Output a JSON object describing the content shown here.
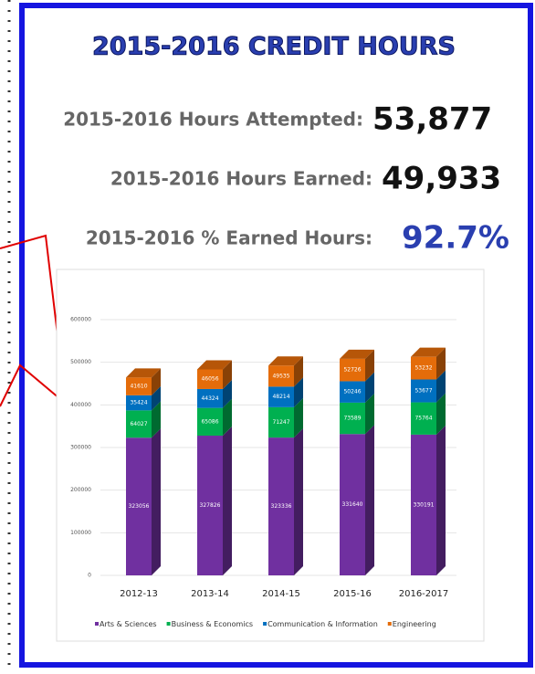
{
  "header": {
    "title": "2015-2016 CREDIT HOURS"
  },
  "stats": [
    {
      "label": "2015-2016 Hours Attempted:",
      "value": "53,877"
    },
    {
      "label": "2015-2016 Hours Earned:",
      "value": "49,933"
    },
    {
      "label": "2015-2016 % Earned Hours:",
      "value": "92.7%"
    }
  ],
  "chart_data": {
    "type": "stacked_bar",
    "categories": [
      "2012-13",
      "2013-14",
      "2014-15",
      "2015-16",
      "2016-2017"
    ],
    "series": [
      {
        "name": "Arts & Sciences",
        "color": "#7030a0",
        "values": [
          323056,
          327826,
          323336,
          331640,
          330191
        ]
      },
      {
        "name": "Business & Economics",
        "color": "#00b050",
        "values": [
          64027,
          65086,
          71247,
          73589,
          75764
        ]
      },
      {
        "name": "Communication & Information",
        "color": "#0070c0",
        "values": [
          35424,
          44324,
          48214,
          50246,
          53677
        ]
      },
      {
        "name": "Engineering",
        "color": "#e46c0a",
        "values": [
          41610,
          46056,
          49535,
          52726,
          53232
        ]
      }
    ],
    "ylim": [
      0,
      600000
    ],
    "yticks": [
      0,
      100000,
      200000,
      300000,
      400000,
      500000,
      600000
    ],
    "grid": true,
    "legend": "bottom"
  }
}
